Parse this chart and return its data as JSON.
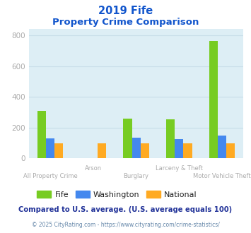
{
  "title_line1": "2019 Fife",
  "title_line2": "Property Crime Comparison",
  "categories": [
    "All Property Crime",
    "Arson",
    "Burglary",
    "Larceny & Theft",
    "Motor Vehicle Theft"
  ],
  "fife": [
    310,
    0,
    258,
    252,
    762
  ],
  "washington": [
    130,
    0,
    135,
    125,
    148
  ],
  "national": [
    100,
    100,
    100,
    100,
    100
  ],
  "fife_color": "#77cc22",
  "washington_color": "#4488ee",
  "national_color": "#ffaa22",
  "title_color": "#1155cc",
  "fig_bg": "#ffffff",
  "plot_bg": "#ddeef5",
  "ylabel_vals": [
    0,
    200,
    400,
    600,
    800
  ],
  "ylim": [
    0,
    840
  ],
  "footnote": "Compared to U.S. average. (U.S. average equals 100)",
  "copyright": "© 2025 CityRating.com - https://www.cityrating.com/crime-statistics/",
  "footnote_color": "#223399",
  "copyright_color": "#6688aa",
  "grid_color": "#c8dde8",
  "tick_color": "#aaaaaa",
  "legend_text_color": "#222222",
  "bar_width": 0.2
}
